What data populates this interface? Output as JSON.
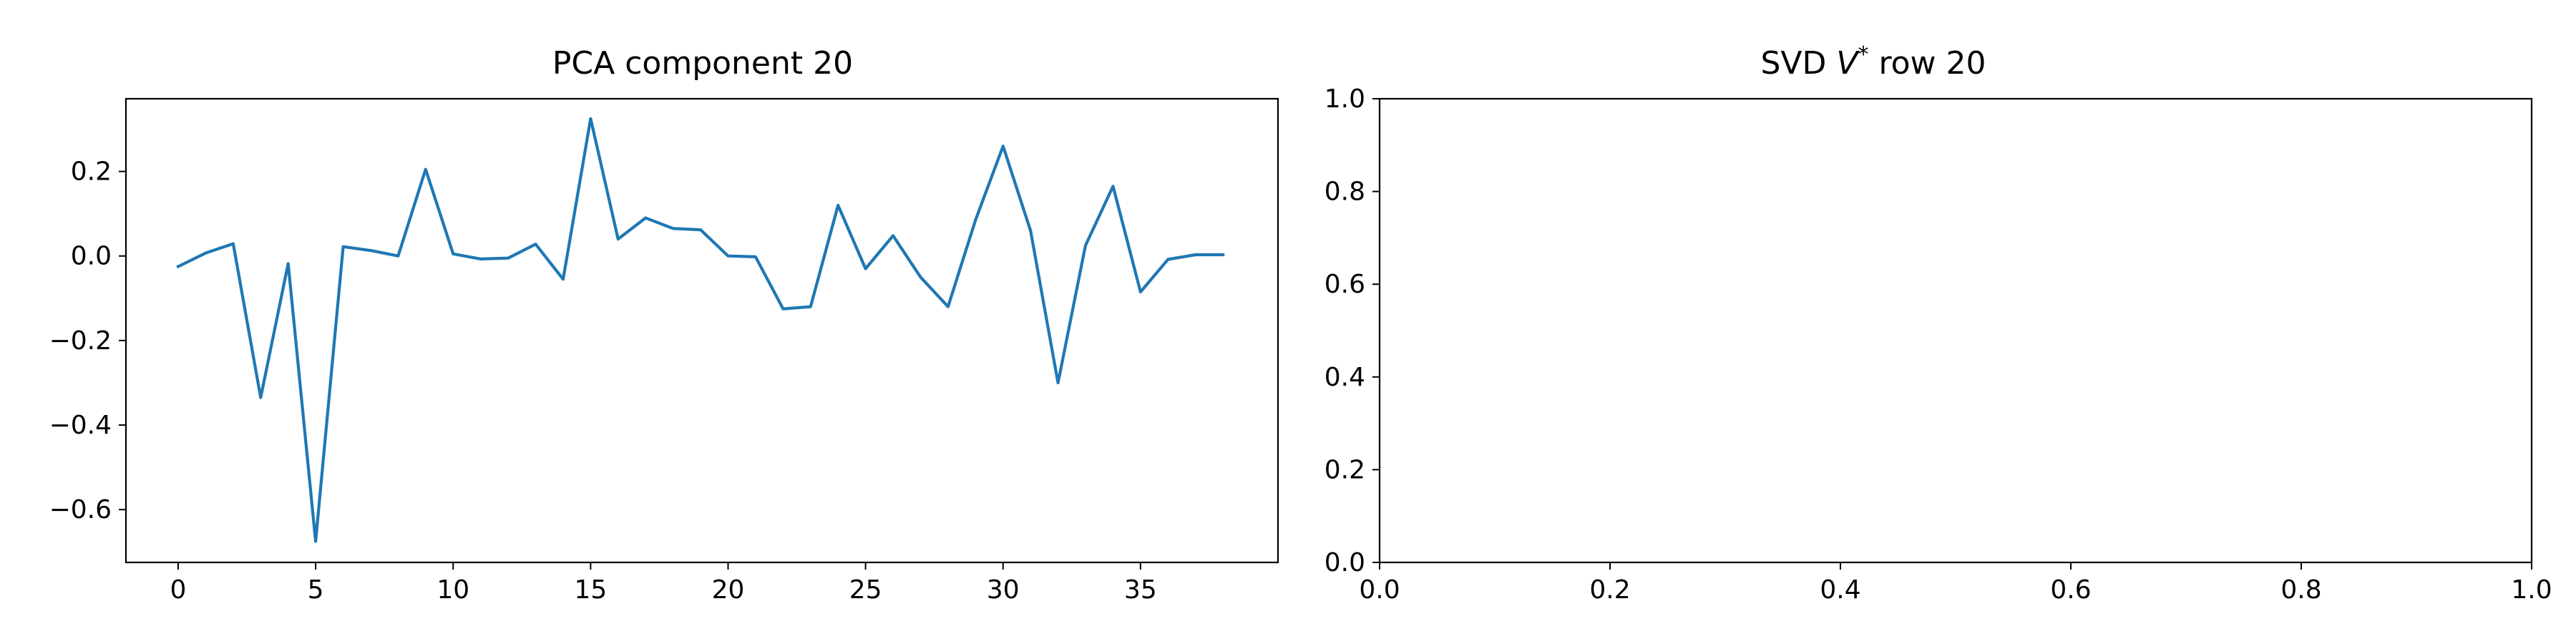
{
  "chart_data": [
    {
      "type": "line",
      "title": "PCA component 20",
      "xlabel": "",
      "ylabel": "",
      "xlim": [
        -1.9,
        40
      ],
      "ylim": [
        -0.725,
        0.372
      ],
      "xticks": [
        0,
        5,
        10,
        15,
        20,
        25,
        30,
        35
      ],
      "yticks": [
        0.2,
        0.0,
        -0.2,
        -0.4,
        -0.6
      ],
      "ytick_labels": [
        "0.2",
        "0.0",
        "−0.2",
        "−0.4",
        "−0.6"
      ],
      "grid": false,
      "line_color": "#1f77b4",
      "series": [
        {
          "x": [
            0,
            1,
            2,
            3,
            4,
            5,
            6,
            7,
            8,
            9,
            10,
            11,
            12,
            13,
            14,
            15,
            16,
            17,
            18,
            19,
            20,
            21,
            22,
            23,
            24,
            25,
            26,
            27,
            28,
            29,
            30,
            31,
            32,
            33,
            34,
            35,
            36,
            37,
            38
          ],
          "values": [
            -0.025,
            0.007,
            0.029,
            -0.335,
            -0.018,
            -0.675,
            0.022,
            0.013,
            0.0,
            0.205,
            0.005,
            -0.007,
            -0.005,
            0.028,
            -0.055,
            0.325,
            0.04,
            0.09,
            0.065,
            0.062,
            0.0,
            -0.002,
            -0.125,
            -0.12,
            0.12,
            -0.03,
            0.048,
            -0.05,
            -0.12,
            0.085,
            0.26,
            0.06,
            -0.3,
            0.025,
            0.165,
            -0.085,
            -0.008,
            0.003,
            0.003
          ]
        }
      ]
    },
    {
      "type": "line",
      "title_prefix": "SVD ",
      "title_symbol": "V",
      "title_sup": "*",
      "title_suffix": " row 20",
      "xlabel": "",
      "ylabel": "",
      "xlim": [
        0.0,
        1.0
      ],
      "ylim": [
        0.0,
        1.0
      ],
      "xticks": [
        "0.0",
        "0.2",
        "0.4",
        "0.6",
        "0.8",
        "1.0"
      ],
      "yticks": [
        "0.0",
        "0.2",
        "0.4",
        "0.6",
        "0.8",
        "1.0"
      ],
      "grid": false,
      "series": []
    }
  ]
}
